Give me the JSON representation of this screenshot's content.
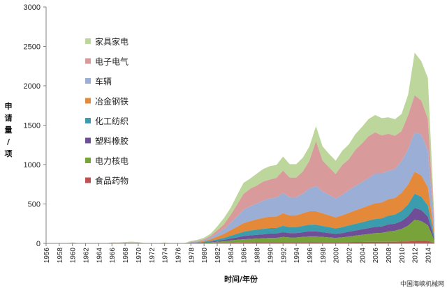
{
  "chart_data": {
    "type": "area",
    "stacked": true,
    "title": "",
    "xlabel": "时间/年份",
    "ylabel": "申请量/项",
    "ylabel_chars": [
      "申",
      "请",
      "量",
      "/",
      "项"
    ],
    "ylim": [
      0,
      3000
    ],
    "xlim": [
      1956,
      2015
    ],
    "yticks": [
      0,
      500,
      1000,
      1500,
      2000,
      2500,
      3000
    ],
    "xticks": [
      1956,
      1958,
      1960,
      1962,
      1964,
      1966,
      1968,
      1970,
      1972,
      1974,
      1976,
      1978,
      1980,
      1982,
      1984,
      1986,
      1988,
      1990,
      1992,
      1994,
      1996,
      1998,
      2000,
      2002,
      2004,
      2006,
      2008,
      2010,
      2012,
      2014
    ],
    "grid": false,
    "legend_position": "upper-left",
    "x": [
      1956,
      1957,
      1958,
      1959,
      1960,
      1961,
      1962,
      1963,
      1964,
      1965,
      1966,
      1967,
      1968,
      1969,
      1970,
      1971,
      1972,
      1973,
      1974,
      1975,
      1976,
      1977,
      1978,
      1979,
      1980,
      1981,
      1982,
      1983,
      1984,
      1985,
      1986,
      1987,
      1988,
      1989,
      1990,
      1991,
      1992,
      1993,
      1994,
      1995,
      1996,
      1997,
      1998,
      1999,
      2000,
      2001,
      2002,
      2003,
      2004,
      2005,
      2006,
      2007,
      2008,
      2009,
      2010,
      2011,
      2012,
      2013,
      2014,
      2015
    ],
    "series": [
      {
        "name": "食品药物",
        "color": "#c0504d",
        "values": [
          0,
          0,
          0,
          0,
          1,
          0,
          0,
          0,
          0,
          0,
          1,
          1,
          1,
          1,
          1,
          0,
          0,
          0,
          1,
          0,
          0,
          0,
          1,
          2,
          2,
          3,
          5,
          6,
          8,
          10,
          12,
          12,
          13,
          14,
          15,
          15,
          17,
          15,
          15,
          16,
          17,
          17,
          16,
          15,
          15,
          16,
          17,
          18,
          18,
          19,
          19,
          19,
          20,
          20,
          22,
          25,
          30,
          32,
          30,
          5
        ]
      },
      {
        "name": "电力核电",
        "color": "#77a33a",
        "values": [
          0,
          0,
          0,
          0,
          1,
          0,
          0,
          0,
          0,
          0,
          1,
          1,
          1,
          1,
          1,
          0,
          0,
          0,
          1,
          0,
          0,
          0,
          2,
          3,
          5,
          10,
          15,
          20,
          28,
          35,
          40,
          45,
          48,
          50,
          55,
          55,
          65,
          60,
          60,
          65,
          70,
          70,
          65,
          60,
          55,
          60,
          70,
          80,
          90,
          100,
          110,
          115,
          130,
          140,
          160,
          200,
          270,
          250,
          200,
          30
        ]
      },
      {
        "name": "塑料橡胶",
        "color": "#6f4e97",
        "values": [
          0,
          0,
          0,
          0,
          1,
          0,
          0,
          0,
          0,
          0,
          1,
          1,
          1,
          1,
          1,
          0,
          0,
          0,
          1,
          0,
          0,
          0,
          2,
          3,
          5,
          8,
          12,
          18,
          25,
          30,
          40,
          45,
          48,
          50,
          55,
          55,
          60,
          55,
          55,
          60,
          65,
          65,
          60,
          55,
          50,
          55,
          60,
          65,
          70,
          75,
          80,
          80,
          90,
          90,
          100,
          120,
          150,
          140,
          110,
          20
        ]
      },
      {
        "name": "化工纺织",
        "color": "#3a9cac",
        "values": [
          0,
          0,
          0,
          0,
          1,
          0,
          0,
          0,
          0,
          0,
          1,
          1,
          1,
          1,
          1,
          0,
          0,
          0,
          1,
          0,
          0,
          0,
          3,
          4,
          8,
          12,
          18,
          25,
          35,
          45,
          55,
          60,
          65,
          70,
          70,
          70,
          80,
          75,
          75,
          80,
          85,
          85,
          80,
          75,
          70,
          75,
          80,
          85,
          90,
          95,
          100,
          105,
          110,
          115,
          130,
          150,
          180,
          170,
          140,
          20
        ]
      },
      {
        "name": "冶金钢铁",
        "color": "#e4883a",
        "values": [
          0,
          0,
          0,
          0,
          1,
          0,
          0,
          0,
          0,
          0,
          1,
          1,
          1,
          1,
          1,
          0,
          0,
          0,
          1,
          0,
          0,
          0,
          4,
          5,
          10,
          20,
          35,
          50,
          70,
          90,
          110,
          120,
          130,
          140,
          145,
          145,
          160,
          150,
          150,
          160,
          170,
          170,
          160,
          150,
          140,
          150,
          160,
          170,
          180,
          190,
          200,
          200,
          210,
          210,
          230,
          250,
          280,
          270,
          230,
          40
        ]
      },
      {
        "name": "车辆",
        "color": "#9aaed6",
        "values": [
          0,
          0,
          0,
          0,
          1,
          0,
          0,
          0,
          0,
          0,
          1,
          1,
          1,
          1,
          1,
          0,
          0,
          0,
          1,
          0,
          0,
          0,
          5,
          8,
          12,
          20,
          40,
          60,
          90,
          130,
          170,
          190,
          200,
          220,
          230,
          240,
          260,
          230,
          230,
          250,
          290,
          320,
          280,
          260,
          240,
          260,
          290,
          310,
          330,
          350,
          380,
          370,
          360,
          370,
          400,
          450,
          500,
          520,
          470,
          60
        ]
      },
      {
        "name": "电子电气",
        "color": "#d89a9a",
        "values": [
          0,
          0,
          0,
          0,
          1,
          0,
          0,
          0,
          0,
          0,
          1,
          1,
          1,
          1,
          1,
          0,
          0,
          0,
          1,
          0,
          0,
          0,
          4,
          5,
          10,
          20,
          40,
          60,
          100,
          150,
          200,
          220,
          230,
          240,
          240,
          250,
          280,
          250,
          250,
          280,
          350,
          570,
          390,
          350,
          310,
          380,
          390,
          460,
          490,
          530,
          520,
          480,
          470,
          420,
          380,
          430,
          470,
          430,
          400,
          50
        ]
      },
      {
        "name": "家具家电",
        "color": "#bcd69c",
        "values": [
          0,
          0,
          0,
          0,
          5,
          3,
          2,
          1,
          1,
          1,
          5,
          5,
          10,
          15,
          10,
          3,
          1,
          1,
          5,
          1,
          1,
          2,
          10,
          15,
          20,
          30,
          50,
          80,
          90,
          120,
          140,
          130,
          150,
          160,
          170,
          165,
          180,
          170,
          170,
          175,
          180,
          190,
          180,
          170,
          170,
          180,
          190,
          200,
          210,
          220,
          220,
          220,
          210,
          210,
          220,
          260,
          540,
          500,
          520,
          80
        ]
      }
    ],
    "watermark": "中国海峡机械网"
  }
}
